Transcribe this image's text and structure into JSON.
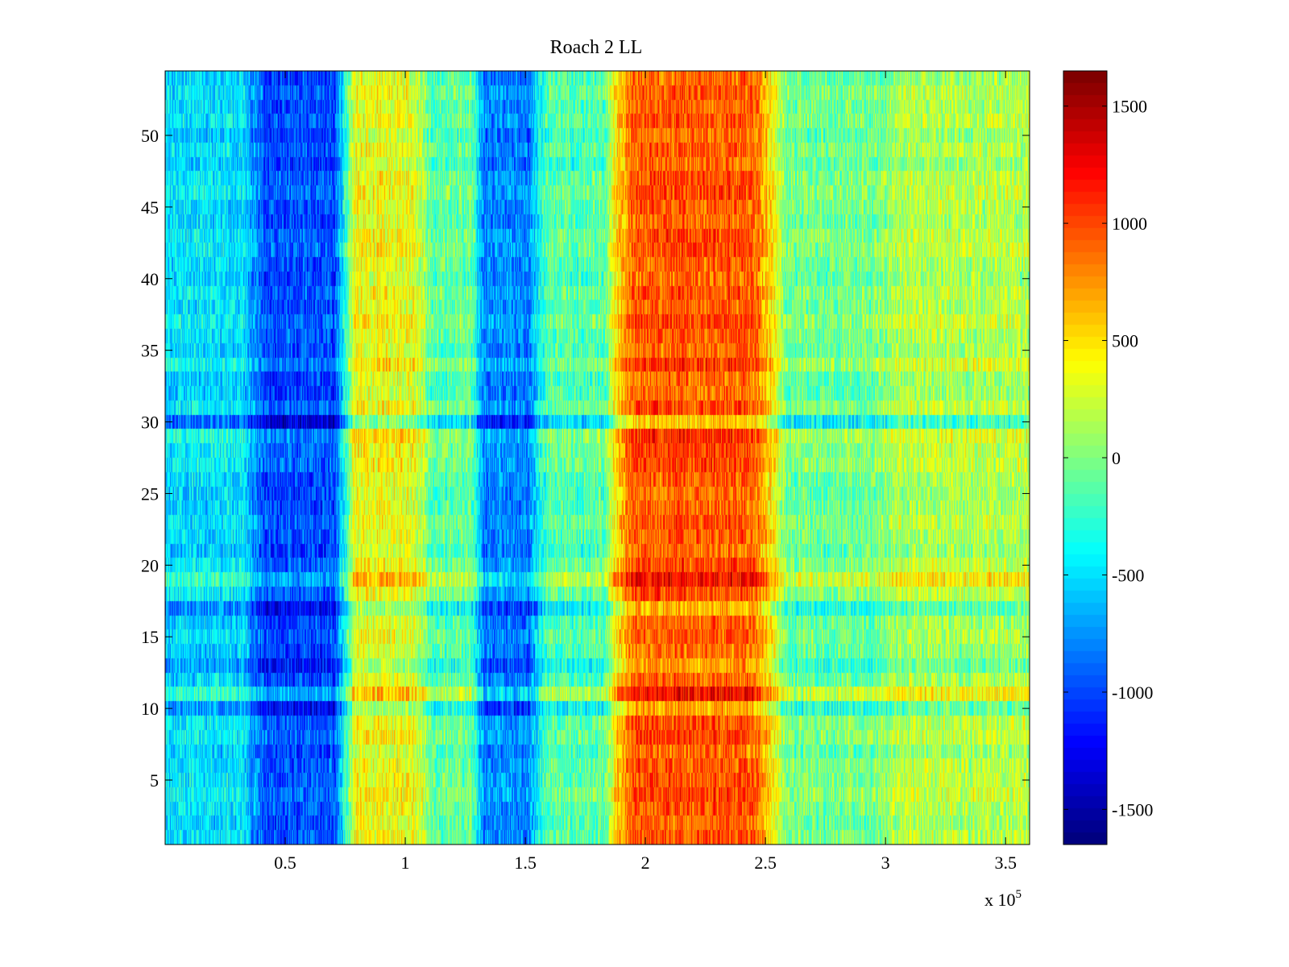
{
  "chart_data": {
    "type": "heatmap",
    "title": "Roach 2 LL",
    "xlabel": "",
    "ylabel": "",
    "xlim": [
      0,
      360000
    ],
    "ylim": [
      0.5,
      54.5
    ],
    "x_multiplier_label": {
      "prefix": "x 10",
      "exponent": "5"
    },
    "x_ticks": [
      {
        "value": 50000,
        "label": "0.5"
      },
      {
        "value": 100000,
        "label": "1"
      },
      {
        "value": 150000,
        "label": "1.5"
      },
      {
        "value": 200000,
        "label": "2"
      },
      {
        "value": 250000,
        "label": "2.5"
      },
      {
        "value": 300000,
        "label": "3"
      },
      {
        "value": 350000,
        "label": "3.5"
      }
    ],
    "y_ticks": [
      {
        "value": 5,
        "label": "5"
      },
      {
        "value": 10,
        "label": "10"
      },
      {
        "value": 15,
        "label": "15"
      },
      {
        "value": 20,
        "label": "20"
      },
      {
        "value": 25,
        "label": "25"
      },
      {
        "value": 30,
        "label": "30"
      },
      {
        "value": 35,
        "label": "35"
      },
      {
        "value": 40,
        "label": "40"
      },
      {
        "value": 45,
        "label": "45"
      },
      {
        "value": 50,
        "label": "50"
      }
    ],
    "colorbar": {
      "colormap": "jet",
      "range": [
        -1650,
        1650
      ],
      "ticks": [
        {
          "value": 1500,
          "label": "1500"
        },
        {
          "value": 1000,
          "label": "1000"
        },
        {
          "value": 500,
          "label": "500"
        },
        {
          "value": 0,
          "label": "0"
        },
        {
          "value": -500,
          "label": "-500"
        },
        {
          "value": -1000,
          "label": "-1000"
        },
        {
          "value": -1500,
          "label": "-1500"
        }
      ]
    },
    "rows": 54,
    "column_bands": [
      {
        "x_start": 0,
        "x_end": 37000,
        "mean": -500
      },
      {
        "x_start": 37000,
        "x_end": 75000,
        "mean": -1000
      },
      {
        "x_start": 75000,
        "x_end": 108000,
        "mean": 350
      },
      {
        "x_start": 108000,
        "x_end": 130000,
        "mean": -100
      },
      {
        "x_start": 130000,
        "x_end": 155000,
        "mean": -800
      },
      {
        "x_start": 155000,
        "x_end": 187000,
        "mean": -150
      },
      {
        "x_start": 187000,
        "x_end": 253000,
        "mean": 950
      },
      {
        "x_start": 253000,
        "x_end": 300000,
        "mean": -50
      },
      {
        "x_start": 300000,
        "x_end": 360000,
        "mean": 150
      }
    ],
    "row_offsets": [
      {
        "row": 9,
        "offset": -350
      },
      {
        "row": 10,
        "offset": 250
      },
      {
        "row": 12,
        "offset": -300
      },
      {
        "row": 16,
        "offset": -250
      },
      {
        "row": 18,
        "offset": 250
      },
      {
        "row": 28,
        "offset": 200
      },
      {
        "row": 29,
        "offset": -400
      },
      {
        "row": 33,
        "offset": 200
      }
    ],
    "noise_amplitude": 300
  }
}
